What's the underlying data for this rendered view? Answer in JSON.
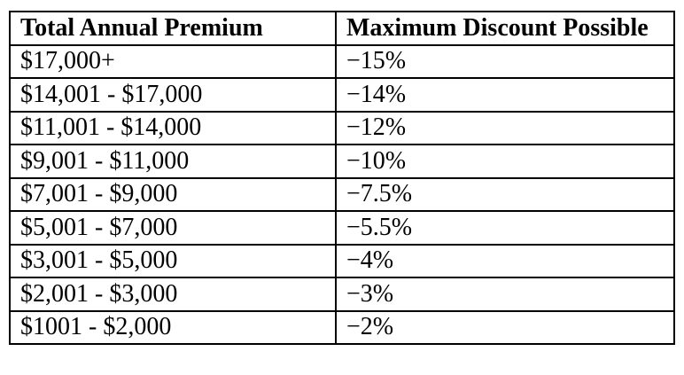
{
  "table": {
    "headers": {
      "premium": "Total Annual Premium",
      "discount": "Maximum Discount Possible"
    },
    "rows": [
      {
        "premium": "$17,000+",
        "discount": "−15%"
      },
      {
        "premium": "$14,001 - $17,000",
        "discount": "−14%"
      },
      {
        "premium": "$11,001 - $14,000",
        "discount": "−12%"
      },
      {
        "premium": "$9,001 - $11,000",
        "discount": "−10%"
      },
      {
        "premium": "$7,001 - $9,000",
        "discount": "−7.5%"
      },
      {
        "premium": "$5,001 - $7,000",
        "discount": "−5.5%"
      },
      {
        "premium": "$3,001 - $5,000",
        "discount": "−4%"
      },
      {
        "premium": "$2,001 - $3,000",
        "discount": "−3%"
      },
      {
        "premium": "$1001 - $2,000",
        "discount": "−2%"
      }
    ],
    "border_color": "#000000"
  }
}
